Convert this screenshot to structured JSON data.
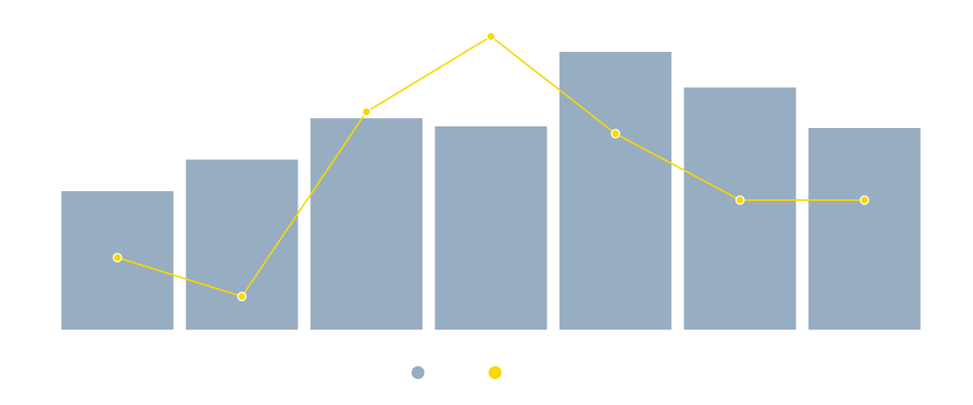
{
  "chart_data": {
    "type": "bar-line",
    "series": [
      {
        "type": "bar",
        "color": "#97adc2",
        "values": [
          171,
          210,
          261,
          251,
          343,
          299,
          249
        ]
      },
      {
        "type": "line",
        "color": "#f7d800",
        "values": [
          89,
          41,
          269,
          362,
          242,
          160,
          160
        ]
      }
    ],
    "ylim": [
      0,
      400
    ],
    "legend": "bottom"
  }
}
